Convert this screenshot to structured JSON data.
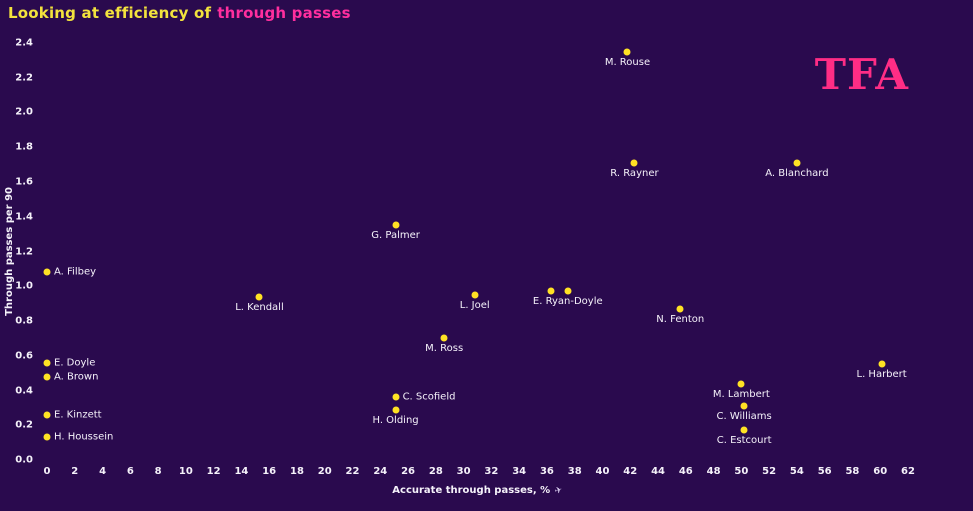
{
  "title": {
    "part1": "Looking at efficiency of",
    "part2": "through passes"
  },
  "logo_text": "TFA",
  "icons": {
    "paper_plane": "✈"
  },
  "colors": {
    "background": "#2a0a4e",
    "title_yellow": "#f3e33d",
    "title_pink": "#ff2e9e",
    "logo_pink": "#ff2d85",
    "dot_yellow": "#ffe224",
    "text": "#f5f2fa"
  },
  "chart_data": {
    "type": "scatter",
    "title": "Looking at efficiency of through passes",
    "xlabel": "Accurate through passes, %",
    "ylabel": "Through passes per 90",
    "xlim": [
      0,
      62
    ],
    "ylim": [
      0,
      2.4
    ],
    "grid": false,
    "legend": false,
    "x_ticks": [
      0,
      2,
      4,
      6,
      8,
      10,
      12,
      14,
      16,
      18,
      20,
      22,
      24,
      26,
      28,
      30,
      32,
      34,
      36,
      38,
      40,
      42,
      44,
      46,
      48,
      50,
      52,
      54,
      56,
      58,
      60,
      62
    ],
    "y_ticks": [
      0,
      0.2,
      0.4,
      0.6,
      0.8,
      1,
      1.2,
      1.4,
      1.6,
      1.8,
      2,
      2.2,
      2.4
    ],
    "points": [
      {
        "label": "M. Rouse",
        "x": 41.8,
        "y": 2.35,
        "label_pos": "below"
      },
      {
        "label": "R. Rayner",
        "x": 42.3,
        "y": 1.71,
        "label_pos": "below"
      },
      {
        "label": "A. Blanchard",
        "x": 54.0,
        "y": 1.71,
        "label_pos": "below"
      },
      {
        "label": "G. Palmer",
        "x": 25.1,
        "y": 1.35,
        "label_pos": "below"
      },
      {
        "label": "A. Filbey",
        "x": 0,
        "y": 1.08,
        "label_pos": "right"
      },
      {
        "label": "L. Kendall",
        "x": 15.3,
        "y": 0.94,
        "label_pos": "below"
      },
      {
        "label": "L. Joel",
        "x": 30.8,
        "y": 0.95,
        "label_pos": "below"
      },
      {
        "label": "",
        "x": 36.3,
        "y": 0.97,
        "label_pos": "below"
      },
      {
        "label": "E. Ryan-Doyle",
        "x": 37.5,
        "y": 0.97,
        "label_pos": "below"
      },
      {
        "label": "N. Fenton",
        "x": 45.6,
        "y": 0.87,
        "label_pos": "below"
      },
      {
        "label": "M. Ross",
        "x": 28.6,
        "y": 0.7,
        "label_pos": "below"
      },
      {
        "label": "E. Doyle",
        "x": 0,
        "y": 0.56,
        "label_pos": "right"
      },
      {
        "label": "A. Brown",
        "x": 0,
        "y": 0.48,
        "label_pos": "right"
      },
      {
        "label": "L. Harbert",
        "x": 60.1,
        "y": 0.55,
        "label_pos": "below"
      },
      {
        "label": "M. Lambert",
        "x": 50.0,
        "y": 0.44,
        "label_pos": "below"
      },
      {
        "label": "C. Scofield",
        "x": 25.1,
        "y": 0.36,
        "label_pos": "right"
      },
      {
        "label": "H. Olding",
        "x": 25.1,
        "y": 0.29,
        "label_pos": "below"
      },
      {
        "label": "C. Williams",
        "x": 50.2,
        "y": 0.31,
        "label_pos": "below"
      },
      {
        "label": "E. Kinzett",
        "x": 0,
        "y": 0.26,
        "label_pos": "right"
      },
      {
        "label": "H. Houssein",
        "x": 0,
        "y": 0.13,
        "label_pos": "right"
      },
      {
        "label": "C. Estcourt",
        "x": 50.2,
        "y": 0.17,
        "label_pos": "below"
      }
    ]
  }
}
